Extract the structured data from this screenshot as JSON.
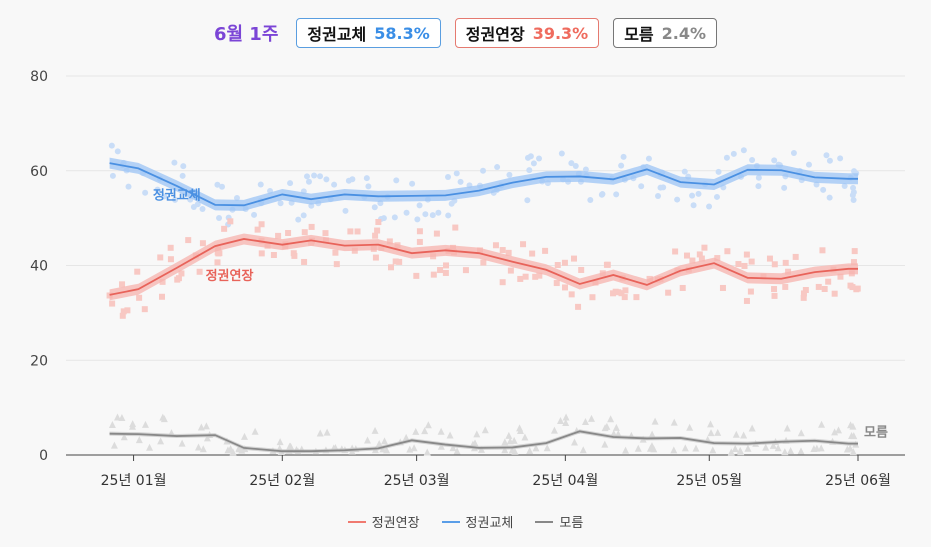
{
  "header": {
    "week": "6월 1주",
    "week_color": "#7b45d6",
    "items": [
      {
        "label": "정권교체",
        "value": "58.3%",
        "color": "#3a8ee6",
        "border": "#5a9ee0"
      },
      {
        "label": "정권연장",
        "value": "39.3%",
        "color": "#ef6b5e",
        "border": "#e57a70"
      },
      {
        "label": "모름",
        "value": "2.4%",
        "color": "#888888",
        "border": "#777777"
      }
    ]
  },
  "chart_data": {
    "type": "line",
    "ylim": [
      0,
      80
    ],
    "yticks": [
      0,
      20,
      40,
      60,
      80
    ],
    "x_domain": [
      "2024-12-20",
      "2025-06-01"
    ],
    "x_ticks": [
      {
        "date": "2025-01-01",
        "label": "25년 01월"
      },
      {
        "date": "2025-02-01",
        "label": "25년 02월"
      },
      {
        "date": "2025-03-01",
        "label": "25년 03월"
      },
      {
        "date": "2025-04-01",
        "label": "25년 04월"
      },
      {
        "date": "2025-05-01",
        "label": "25년 05월"
      },
      {
        "date": "2025-06-01",
        "label": "25년 06월"
      }
    ],
    "series": [
      {
        "name": "정권교체",
        "label": "정권교체",
        "color": "#4a90e2",
        "band_color": "#9cc4f5",
        "point_color": "#c9ddf7",
        "label_at": "2025-01-10",
        "label_value": 55,
        "dates": [
          "2024-12-27",
          "2025-01-02",
          "2025-01-10",
          "2025-01-18",
          "2025-01-24",
          "2025-02-01",
          "2025-02-07",
          "2025-02-14",
          "2025-02-21",
          "2025-02-28",
          "2025-03-07",
          "2025-03-14",
          "2025-03-21",
          "2025-03-28",
          "2025-04-04",
          "2025-04-11",
          "2025-04-18",
          "2025-04-25",
          "2025-05-02",
          "2025-05-09",
          "2025-05-16",
          "2025-05-23",
          "2025-05-30",
          "2025-06-01"
        ],
        "values": [
          61.6,
          60.5,
          56.8,
          52.8,
          52.7,
          55.0,
          54.0,
          55.0,
          54.6,
          54.7,
          54.8,
          55.8,
          57.5,
          58.7,
          58.8,
          58.2,
          60.3,
          57.6,
          57.1,
          60.2,
          60.1,
          58.6,
          58.3,
          58.3
        ]
      },
      {
        "name": "정권연장",
        "label": "정권연장",
        "color": "#e8635a",
        "band_color": "#f7b3ad",
        "point_color": "#f8c8c3",
        "label_at": "2025-01-21",
        "label_value": 38,
        "dates": [
          "2024-12-27",
          "2025-01-02",
          "2025-01-10",
          "2025-01-18",
          "2025-01-24",
          "2025-02-01",
          "2025-02-07",
          "2025-02-14",
          "2025-02-21",
          "2025-02-28",
          "2025-03-07",
          "2025-03-14",
          "2025-03-21",
          "2025-03-28",
          "2025-04-04",
          "2025-04-11",
          "2025-04-18",
          "2025-04-25",
          "2025-05-02",
          "2025-05-09",
          "2025-05-16",
          "2025-05-23",
          "2025-05-30",
          "2025-06-01"
        ],
        "values": [
          33.8,
          35.0,
          39.5,
          44.1,
          45.6,
          44.4,
          45.3,
          44.2,
          44.4,
          42.6,
          43.2,
          42.6,
          40.8,
          39.1,
          36.1,
          38.0,
          35.9,
          38.9,
          40.5,
          37.4,
          37.2,
          38.6,
          39.3,
          39.3
        ]
      },
      {
        "name": "모름",
        "label": "모름",
        "color": "#888888",
        "band_color": "#c8c8c8",
        "point_color": "#dcdcdc",
        "label_at": "2025-06-01",
        "label_value": 5,
        "dates": [
          "2024-12-27",
          "2025-01-02",
          "2025-01-10",
          "2025-01-18",
          "2025-01-24",
          "2025-02-01",
          "2025-02-07",
          "2025-02-14",
          "2025-02-21",
          "2025-02-28",
          "2025-03-07",
          "2025-03-14",
          "2025-03-21",
          "2025-03-28",
          "2025-04-04",
          "2025-04-11",
          "2025-04-18",
          "2025-04-25",
          "2025-05-02",
          "2025-05-09",
          "2025-05-16",
          "2025-05-23",
          "2025-05-30",
          "2025-06-01"
        ],
        "values": [
          4.5,
          4.4,
          4.0,
          4.2,
          1.5,
          0.8,
          0.8,
          1.0,
          1.4,
          3.1,
          2.2,
          1.5,
          1.6,
          2.5,
          5.0,
          3.8,
          3.5,
          3.6,
          2.5,
          2.4,
          2.8,
          3.0,
          2.4,
          2.4
        ]
      }
    ]
  },
  "legend": {
    "items": [
      {
        "label": "정권연장",
        "color": "#f07a70"
      },
      {
        "label": "정권교체",
        "color": "#5a9ee8"
      },
      {
        "label": "모름",
        "color": "#888888"
      }
    ]
  }
}
